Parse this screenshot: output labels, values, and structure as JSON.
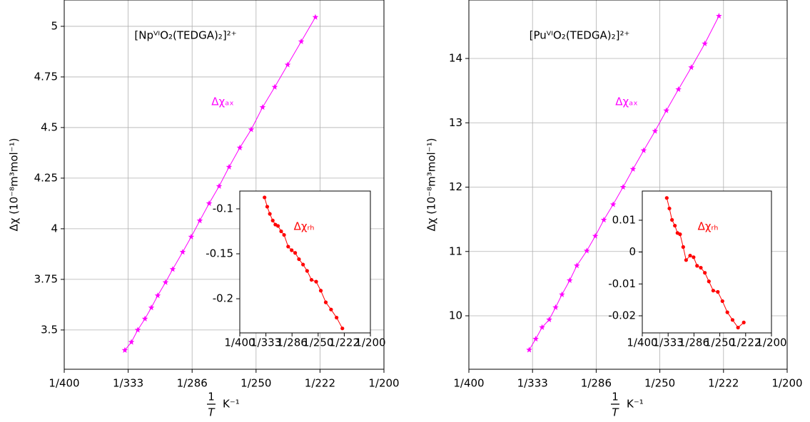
{
  "chart_data": [
    {
      "type": "line",
      "marker": "star",
      "annotation": "[NpⱽᴵO₂(TEDGA)₂]²⁺",
      "y_label": "Δχ  (10⁻⁸m³mol⁻¹)",
      "x_label": {
        "numerator": "1",
        "denominator": "T",
        "unit": "K⁻¹"
      },
      "x": [
        0.002974,
        0.003025,
        0.003075,
        0.003131,
        0.003181,
        0.003231,
        0.003292,
        0.003348,
        0.003426,
        0.003493,
        0.00356,
        0.003633,
        0.003711,
        0.003789,
        0.003873,
        0.003962,
        0.004051,
        0.004146,
        0.004247,
        0.004353,
        0.004464
      ],
      "series": [
        {
          "name": "Δχₐₓ",
          "color": "#ff00ff",
          "values": [
            3.4,
            3.44,
            3.5,
            3.555,
            3.61,
            3.67,
            3.735,
            3.8,
            3.885,
            3.96,
            4.04,
            4.125,
            4.21,
            4.305,
            4.4,
            4.49,
            4.6,
            4.7,
            4.81,
            4.925,
            5.045
          ]
        }
      ],
      "xlim": [
        0.0025,
        0.005
      ],
      "xticks": [
        {
          "value": 0.0025,
          "label": "1/400"
        },
        {
          "value": 0.003,
          "label": "1/333"
        },
        {
          "value": 0.0035,
          "label": "1/286"
        },
        {
          "value": 0.004,
          "label": "1/250"
        },
        {
          "value": 0.0045,
          "label": "1/222"
        },
        {
          "value": 0.005,
          "label": "1/200"
        }
      ],
      "ylim": [
        3.306,
        5.13
      ],
      "yticks": [
        3.5,
        3.75,
        4,
        4.25,
        4.5,
        4.75,
        5
      ],
      "grid": true
    },
    {
      "type": "line",
      "marker": "circle",
      "x": [
        0.002974,
        0.003025,
        0.003075,
        0.003131,
        0.003181,
        0.003231,
        0.003292,
        0.003348,
        0.003426,
        0.003493,
        0.00356,
        0.003633,
        0.003711,
        0.003789,
        0.003873,
        0.003962,
        0.004051,
        0.004146,
        0.004247,
        0.004353,
        0.004464
      ],
      "series": [
        {
          "name": "Δχᵣₕ",
          "color": "#ff0000",
          "values": [
            -0.0873,
            -0.0976,
            -0.1056,
            -0.113,
            -0.1175,
            -0.119,
            -0.125,
            -0.129,
            -0.142,
            -0.146,
            -0.149,
            -0.156,
            -0.162,
            -0.169,
            -0.179,
            -0.181,
            -0.191,
            -0.204,
            -0.212,
            -0.221,
            -0.233
          ]
        }
      ],
      "xlim": [
        0.0025,
        0.005
      ],
      "xticks": [
        {
          "value": 0.0025,
          "label": "1/400"
        },
        {
          "value": 0.003,
          "label": "1/333"
        },
        {
          "value": 0.0035,
          "label": "1/286"
        },
        {
          "value": 0.004,
          "label": "1/250"
        },
        {
          "value": 0.0045,
          "label": "1/222"
        },
        {
          "value": 0.005,
          "label": "1/200"
        }
      ],
      "ylim": [
        -0.238,
        -0.0802
      ],
      "yticks": [
        -0.1,
        -0.15,
        -0.2
      ],
      "grid": false
    },
    {
      "type": "line",
      "marker": "star",
      "annotation": "[PuⱽᴵO₂(TEDGA)₂]²⁺",
      "y_label": "Δχ  (10⁻⁸m³mol⁻¹)",
      "x_label": {
        "numerator": "1",
        "denominator": "T",
        "unit": "K⁻¹"
      },
      "x": [
        0.002974,
        0.003025,
        0.003075,
        0.003131,
        0.003181,
        0.003231,
        0.003292,
        0.003348,
        0.003426,
        0.003493,
        0.00356,
        0.003633,
        0.003711,
        0.003789,
        0.003873,
        0.003962,
        0.004051,
        0.004146,
        0.004247,
        0.004353,
        0.004464
      ],
      "series": [
        {
          "name": "Δχₐₓ",
          "color": "#ff00ff",
          "values": [
            9.47,
            9.64,
            9.82,
            9.94,
            10.13,
            10.33,
            10.55,
            10.78,
            11.01,
            11.24,
            11.49,
            11.73,
            12.0,
            12.28,
            12.57,
            12.87,
            13.19,
            13.52,
            13.86,
            14.23,
            14.66
          ]
        }
      ],
      "xlim": [
        0.0025,
        0.005
      ],
      "xticks": [
        {
          "value": 0.0025,
          "label": "1/400"
        },
        {
          "value": 0.003,
          "label": "1/333"
        },
        {
          "value": 0.0035,
          "label": "1/286"
        },
        {
          "value": 0.004,
          "label": "1/250"
        },
        {
          "value": 0.0045,
          "label": "1/222"
        },
        {
          "value": 0.005,
          "label": "1/200"
        }
      ],
      "ylim": [
        9.169,
        14.909
      ],
      "yticks": [
        10,
        11,
        12,
        13,
        14
      ],
      "grid": true
    },
    {
      "type": "line",
      "marker": "circle",
      "x": [
        0.002974,
        0.003025,
        0.003075,
        0.003131,
        0.003181,
        0.003231,
        0.003292,
        0.003348,
        0.003426,
        0.003493,
        0.00356,
        0.003633,
        0.003711,
        0.003789,
        0.003873,
        0.003962,
        0.004051,
        0.004146,
        0.004247,
        0.004353,
        0.004464
      ],
      "series": [
        {
          "name": "Δχᵣₕ",
          "color": "#ff0000",
          "values": [
            0.017,
            0.0137,
            0.0101,
            0.0083,
            0.006,
            0.0056,
            0.0016,
            -0.0025,
            -0.0011,
            -0.0016,
            -0.0043,
            -0.0049,
            -0.0065,
            -0.0092,
            -0.0121,
            -0.0125,
            -0.0154,
            -0.0189,
            -0.0213,
            -0.0237,
            -0.0221
          ]
        }
      ],
      "xlim": [
        0.0025,
        0.005
      ],
      "xticks": [
        {
          "value": 0.0025,
          "label": "1/400"
        },
        {
          "value": 0.003,
          "label": "1/333"
        },
        {
          "value": 0.0035,
          "label": "1/286"
        },
        {
          "value": 0.004,
          "label": "1/250"
        },
        {
          "value": 0.0045,
          "label": "1/222"
        },
        {
          "value": 0.005,
          "label": "1/200"
        }
      ],
      "ylim": [
        -0.02537,
        0.01917
      ],
      "yticks": [
        0.01,
        0,
        -0.01,
        -0.02
      ],
      "grid": false
    }
  ]
}
